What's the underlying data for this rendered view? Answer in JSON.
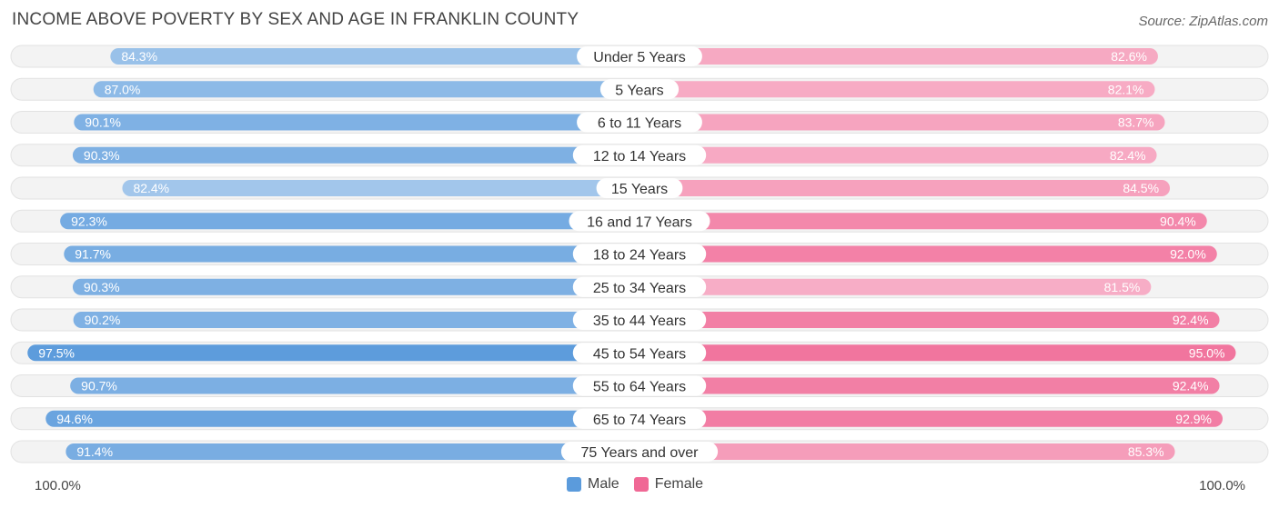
{
  "chart_data": {
    "type": "bar",
    "title": "INCOME ABOVE POVERTY BY SEX AND AGE IN FRANKLIN COUNTY",
    "source": "Source: ZipAtlas.com",
    "categories": [
      "Under 5 Years",
      "5 Years",
      "6 to 11 Years",
      "12 to 14 Years",
      "15 Years",
      "16 and 17 Years",
      "18 to 24 Years",
      "25 to 34 Years",
      "35 to 44 Years",
      "45 to 54 Years",
      "55 to 64 Years",
      "65 to 74 Years",
      "75 Years and over"
    ],
    "series": [
      {
        "name": "Male",
        "values": [
          84.3,
          87.0,
          90.1,
          90.3,
          82.4,
          92.3,
          91.7,
          90.3,
          90.2,
          97.5,
          90.7,
          94.6,
          91.4
        ],
        "labels": [
          "84.3%",
          "87.0%",
          "90.1%",
          "90.3%",
          "82.4%",
          "92.3%",
          "91.7%",
          "90.3%",
          "90.2%",
          "97.5%",
          "90.7%",
          "94.6%",
          "91.4%"
        ],
        "color": "#5b9bdc"
      },
      {
        "name": "Female",
        "values": [
          82.6,
          82.1,
          83.7,
          82.4,
          84.5,
          90.4,
          92.0,
          81.5,
          92.4,
          95.0,
          92.4,
          92.9,
          85.3
        ],
        "labels": [
          "82.6%",
          "82.1%",
          "83.7%",
          "82.4%",
          "84.5%",
          "90.4%",
          "92.0%",
          "81.5%",
          "92.4%",
          "95.0%",
          "92.4%",
          "92.9%",
          "85.3%"
        ],
        "color": "#f06895"
      }
    ],
    "axis_left_label": "100.0%",
    "axis_right_label": "100.0%",
    "xlim": [
      0,
      100
    ],
    "legend_position": "bottom-center"
  }
}
